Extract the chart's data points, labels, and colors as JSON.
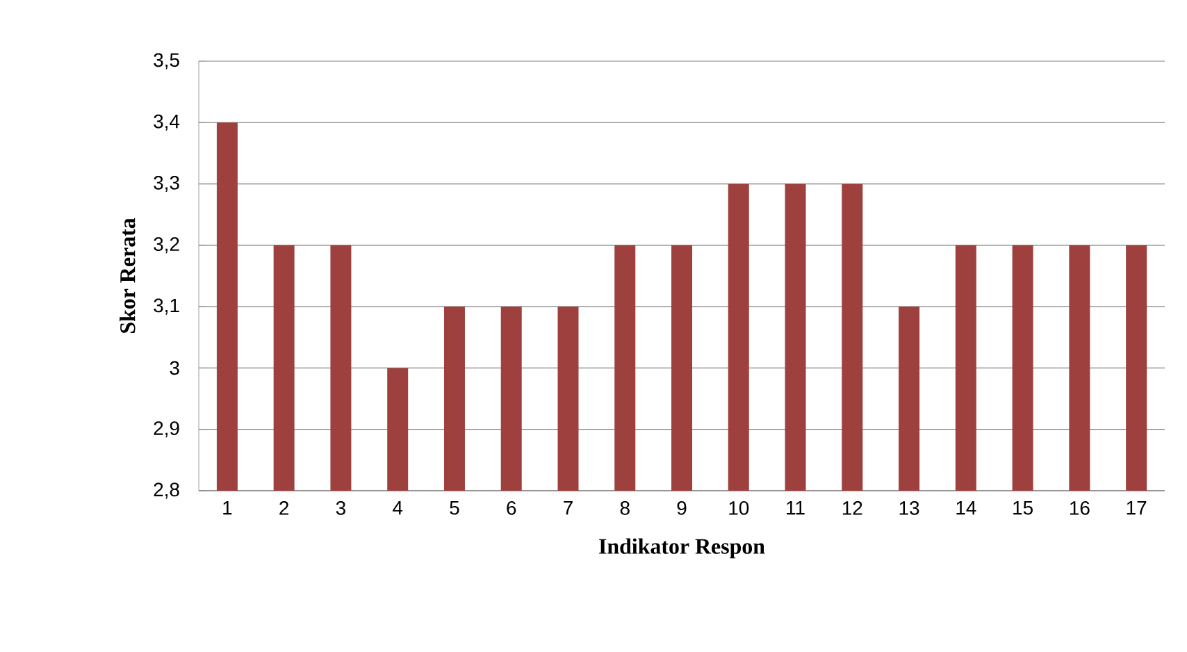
{
  "chart_data": {
    "type": "bar",
    "xlabel": "Indikator Respon",
    "ylabel": "Skor Rerata",
    "categories": [
      "1",
      "2",
      "3",
      "4",
      "5",
      "6",
      "7",
      "8",
      "9",
      "10",
      "11",
      "12",
      "13",
      "14",
      "15",
      "16",
      "17"
    ],
    "values": [
      3.4,
      3.2,
      3.2,
      3.0,
      3.1,
      3.1,
      3.1,
      3.2,
      3.2,
      3.3,
      3.3,
      3.3,
      3.1,
      3.2,
      3.2,
      3.2,
      3.2
    ],
    "color": "#9e413e",
    "ylim": [
      2.8,
      3.5
    ],
    "yticks": [
      {
        "value": 2.8,
        "label": "2,8"
      },
      {
        "value": 2.9,
        "label": "2,9"
      },
      {
        "value": 3,
        "label": "3"
      },
      {
        "value": 3.1,
        "label": "3,1"
      },
      {
        "value": 3.2,
        "label": "3,2"
      },
      {
        "value": 3.3,
        "label": "3,3"
      },
      {
        "value": 3.4,
        "label": "3,4"
      },
      {
        "value": 3.5,
        "label": "3,5"
      }
    ],
    "grid": "y"
  }
}
